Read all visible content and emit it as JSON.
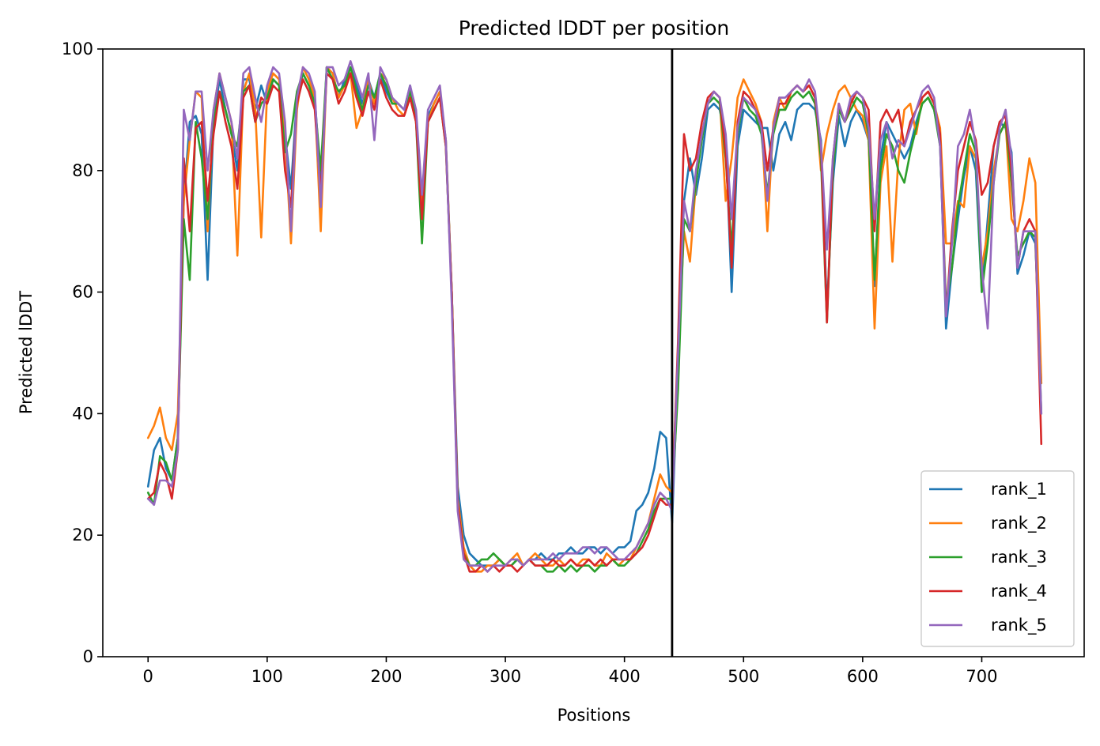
{
  "chart_data": {
    "type": "line",
    "title": "Predicted lDDT per position",
    "xlabel": "Positions",
    "ylabel": "Predicted lDDT",
    "xlim": [
      -38,
      786
    ],
    "ylim": [
      0,
      100
    ],
    "xticks": [
      0,
      100,
      200,
      300,
      400,
      500,
      600,
      700
    ],
    "yticks": [
      0,
      20,
      40,
      60,
      80,
      100
    ],
    "grid": false,
    "legend_position": "lower right",
    "vertical_line": {
      "x": 440,
      "color": "#000000"
    },
    "x": [
      0,
      5,
      10,
      15,
      20,
      25,
      30,
      35,
      40,
      45,
      50,
      55,
      60,
      65,
      70,
      75,
      80,
      85,
      90,
      95,
      100,
      105,
      110,
      115,
      120,
      125,
      130,
      135,
      140,
      145,
      150,
      155,
      160,
      165,
      170,
      175,
      180,
      185,
      190,
      195,
      200,
      205,
      210,
      215,
      220,
      225,
      230,
      235,
      240,
      245,
      250,
      255,
      260,
      265,
      270,
      275,
      280,
      285,
      290,
      295,
      300,
      305,
      310,
      315,
      320,
      325,
      330,
      335,
      340,
      345,
      350,
      355,
      360,
      365,
      370,
      375,
      380,
      385,
      390,
      395,
      400,
      405,
      410,
      415,
      420,
      425,
      430,
      435,
      440,
      445,
      450,
      455,
      460,
      465,
      470,
      475,
      480,
      485,
      490,
      495,
      500,
      505,
      510,
      515,
      520,
      525,
      530,
      535,
      540,
      545,
      550,
      555,
      560,
      565,
      570,
      575,
      580,
      585,
      590,
      595,
      600,
      605,
      610,
      615,
      620,
      625,
      630,
      635,
      640,
      645,
      650,
      655,
      660,
      665,
      670,
      675,
      680,
      685,
      690,
      695,
      700,
      705,
      710,
      715,
      720,
      725,
      730,
      735,
      740,
      745,
      750
    ],
    "series": [
      {
        "name": "rank_1",
        "color": "#1f77b4",
        "values": [
          28,
          34,
          36,
          31,
          29,
          36,
          75,
          88,
          89,
          86,
          62,
          88,
          95,
          90,
          86,
          80,
          95,
          95,
          90,
          94,
          91,
          95,
          94,
          86,
          77,
          92,
          96,
          94,
          92,
          78,
          97,
          96,
          92,
          95,
          97,
          94,
          91,
          95,
          92,
          96,
          93,
          91,
          91,
          90,
          94,
          89,
          73,
          89,
          91,
          93,
          85,
          60,
          28,
          20,
          17,
          16,
          15,
          15,
          15,
          16,
          15,
          15,
          16,
          15,
          16,
          16,
          17,
          16,
          16,
          17,
          17,
          18,
          17,
          17,
          18,
          18,
          17,
          18,
          17,
          18,
          18,
          19,
          24,
          25,
          27,
          31,
          37,
          36,
          22,
          48,
          75,
          82,
          76,
          82,
          90,
          91,
          90,
          85,
          60,
          84,
          90,
          89,
          88,
          87,
          87,
          80,
          86,
          88,
          85,
          90,
          91,
          91,
          90,
          85,
          57,
          78,
          89,
          84,
          88,
          90,
          88,
          85,
          61,
          82,
          88,
          86,
          84,
          82,
          84,
          88,
          91,
          92,
          90,
          85,
          54,
          64,
          72,
          79,
          84,
          80,
          60,
          72,
          84,
          88,
          87,
          83,
          63,
          66,
          70,
          68,
          45
        ]
      },
      {
        "name": "rank_2",
        "color": "#ff7f0e",
        "values": [
          36,
          38,
          41,
          36,
          34,
          40,
          75,
          85,
          93,
          92,
          70,
          90,
          96,
          92,
          88,
          66,
          93,
          96,
          90,
          69,
          93,
          96,
          95,
          86,
          68,
          90,
          97,
          95,
          92,
          70,
          97,
          96,
          92,
          94,
          96,
          87,
          90,
          95,
          91,
          96,
          95,
          92,
          90,
          89,
          92,
          88,
          75,
          88,
          91,
          93,
          85,
          60,
          26,
          18,
          15,
          14,
          14,
          15,
          15,
          16,
          15,
          16,
          17,
          15,
          16,
          17,
          16,
          15,
          15,
          16,
          15,
          16,
          15,
          16,
          16,
          15,
          15,
          17,
          16,
          15,
          16,
          16,
          18,
          20,
          22,
          26,
          30,
          28,
          27,
          50,
          70,
          65,
          78,
          86,
          91,
          93,
          92,
          75,
          82,
          92,
          95,
          93,
          91,
          88,
          70,
          88,
          92,
          90,
          93,
          94,
          93,
          94,
          92,
          80,
          86,
          90,
          93,
          94,
          92,
          90,
          89,
          85,
          54,
          78,
          84,
          65,
          82,
          90,
          91,
          86,
          92,
          93,
          91,
          87,
          68,
          68,
          75,
          74,
          84,
          82,
          64,
          70,
          80,
          86,
          88,
          72,
          70,
          75,
          82,
          78,
          45
        ]
      },
      {
        "name": "rank_3",
        "color": "#2ca02c",
        "values": [
          27,
          25,
          33,
          32,
          29,
          36,
          72,
          62,
          88,
          82,
          72,
          88,
          93,
          90,
          86,
          84,
          93,
          94,
          88,
          91,
          92,
          95,
          94,
          83,
          86,
          93,
          96,
          94,
          91,
          80,
          97,
          95,
          93,
          94,
          97,
          93,
          90,
          94,
          92,
          96,
          94,
          91,
          91,
          90,
          93,
          88,
          68,
          88,
          90,
          92,
          84,
          60,
          25,
          17,
          15,
          15,
          16,
          16,
          17,
          16,
          15,
          15,
          16,
          15,
          16,
          15,
          15,
          14,
          14,
          15,
          14,
          15,
          14,
          15,
          15,
          14,
          15,
          15,
          16,
          15,
          15,
          16,
          17,
          19,
          21,
          24,
          26,
          26,
          26,
          44,
          72,
          70,
          78,
          85,
          91,
          92,
          91,
          82,
          67,
          86,
          92,
          90,
          89,
          86,
          76,
          86,
          90,
          90,
          92,
          93,
          92,
          93,
          91,
          82,
          55,
          80,
          90,
          88,
          90,
          92,
          91,
          86,
          62,
          80,
          86,
          84,
          80,
          78,
          83,
          87,
          91,
          92,
          90,
          84,
          58,
          64,
          74,
          80,
          86,
          83,
          60,
          68,
          78,
          86,
          88,
          78,
          66,
          68,
          70,
          69,
          40
        ]
      },
      {
        "name": "rank_4",
        "color": "#d62728",
        "values": [
          26,
          27,
          32,
          30,
          26,
          34,
          82,
          70,
          87,
          88,
          75,
          86,
          93,
          88,
          84,
          77,
          92,
          94,
          88,
          92,
          91,
          94,
          93,
          80,
          74,
          91,
          95,
          93,
          90,
          76,
          96,
          95,
          91,
          93,
          96,
          92,
          89,
          93,
          90,
          95,
          92,
          90,
          89,
          89,
          92,
          88,
          72,
          88,
          90,
          92,
          84,
          60,
          25,
          17,
          14,
          14,
          15,
          14,
          15,
          14,
          15,
          15,
          14,
          15,
          16,
          15,
          15,
          15,
          16,
          15,
          15,
          16,
          15,
          15,
          16,
          15,
          16,
          15,
          16,
          16,
          16,
          16,
          17,
          18,
          20,
          23,
          26,
          25,
          25,
          52,
          86,
          80,
          82,
          88,
          92,
          93,
          92,
          83,
          64,
          88,
          93,
          92,
          90,
          88,
          80,
          87,
          91,
          91,
          93,
          94,
          93,
          94,
          92,
          84,
          55,
          82,
          91,
          88,
          91,
          93,
          92,
          90,
          70,
          88,
          90,
          88,
          90,
          84,
          88,
          90,
          92,
          93,
          91,
          86,
          56,
          70,
          80,
          84,
          88,
          85,
          76,
          78,
          84,
          88,
          89,
          80,
          64,
          70,
          72,
          70,
          35
        ]
      },
      {
        "name": "rank_5",
        "color": "#9467bd",
        "values": [
          26,
          25,
          29,
          29,
          28,
          34,
          90,
          85,
          93,
          93,
          80,
          90,
          96,
          92,
          88,
          82,
          96,
          97,
          92,
          88,
          94,
          97,
          96,
          88,
          70,
          92,
          97,
          96,
          93,
          74,
          97,
          97,
          94,
          95,
          98,
          95,
          92,
          96,
          85,
          97,
          95,
          92,
          91,
          90,
          94,
          90,
          76,
          90,
          92,
          94,
          85,
          58,
          24,
          16,
          15,
          15,
          15,
          14,
          15,
          15,
          15,
          16,
          16,
          15,
          16,
          16,
          16,
          16,
          17,
          16,
          17,
          17,
          17,
          18,
          18,
          17,
          18,
          18,
          17,
          16,
          16,
          17,
          18,
          20,
          22,
          25,
          27,
          26,
          24,
          50,
          75,
          70,
          80,
          86,
          91,
          93,
          92,
          86,
          72,
          87,
          92,
          91,
          90,
          87,
          75,
          87,
          92,
          92,
          93,
          94,
          93,
          95,
          93,
          84,
          67,
          82,
          91,
          88,
          92,
          93,
          92,
          87,
          72,
          85,
          88,
          82,
          85,
          84,
          87,
          90,
          93,
          94,
          92,
          84,
          56,
          68,
          84,
          86,
          90,
          84,
          64,
          54,
          78,
          87,
          90,
          82,
          64,
          70,
          70,
          70,
          40
        ]
      }
    ]
  }
}
